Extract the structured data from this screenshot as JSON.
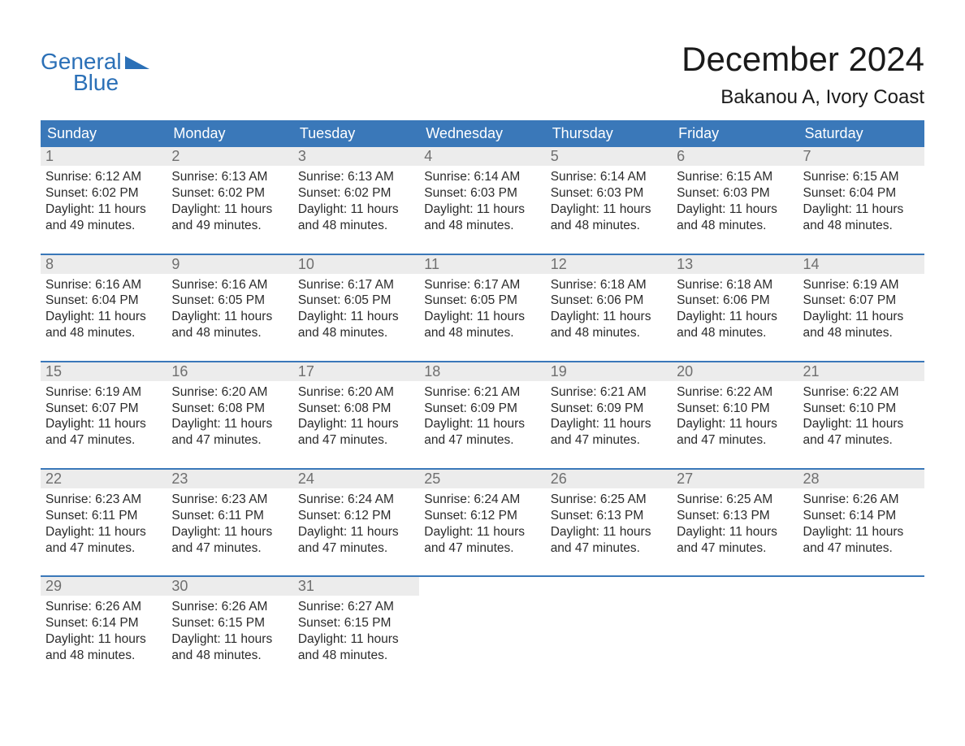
{
  "logo": {
    "word1": "General",
    "word2": "Blue"
  },
  "brand_color": "#2b70b7",
  "header_bg": "#3a78b9",
  "daynum_bg": "#ececec",
  "daynum_color": "#6f6f6f",
  "title": "December 2024",
  "location": "Bakanou A, Ivory Coast",
  "weekdays": [
    "Sunday",
    "Monday",
    "Tuesday",
    "Wednesday",
    "Thursday",
    "Friday",
    "Saturday"
  ],
  "labels": {
    "sunrise": "Sunrise:",
    "sunset": "Sunset:",
    "daylight": "Daylight:"
  },
  "weeks": [
    [
      {
        "n": "1",
        "sunrise": "6:12 AM",
        "sunset": "6:02 PM",
        "daylight": "11 hours and 49 minutes."
      },
      {
        "n": "2",
        "sunrise": "6:13 AM",
        "sunset": "6:02 PM",
        "daylight": "11 hours and 49 minutes."
      },
      {
        "n": "3",
        "sunrise": "6:13 AM",
        "sunset": "6:02 PM",
        "daylight": "11 hours and 48 minutes."
      },
      {
        "n": "4",
        "sunrise": "6:14 AM",
        "sunset": "6:03 PM",
        "daylight": "11 hours and 48 minutes."
      },
      {
        "n": "5",
        "sunrise": "6:14 AM",
        "sunset": "6:03 PM",
        "daylight": "11 hours and 48 minutes."
      },
      {
        "n": "6",
        "sunrise": "6:15 AM",
        "sunset": "6:03 PM",
        "daylight": "11 hours and 48 minutes."
      },
      {
        "n": "7",
        "sunrise": "6:15 AM",
        "sunset": "6:04 PM",
        "daylight": "11 hours and 48 minutes."
      }
    ],
    [
      {
        "n": "8",
        "sunrise": "6:16 AM",
        "sunset": "6:04 PM",
        "daylight": "11 hours and 48 minutes."
      },
      {
        "n": "9",
        "sunrise": "6:16 AM",
        "sunset": "6:05 PM",
        "daylight": "11 hours and 48 minutes."
      },
      {
        "n": "10",
        "sunrise": "6:17 AM",
        "sunset": "6:05 PM",
        "daylight": "11 hours and 48 minutes."
      },
      {
        "n": "11",
        "sunrise": "6:17 AM",
        "sunset": "6:05 PM",
        "daylight": "11 hours and 48 minutes."
      },
      {
        "n": "12",
        "sunrise": "6:18 AM",
        "sunset": "6:06 PM",
        "daylight": "11 hours and 48 minutes."
      },
      {
        "n": "13",
        "sunrise": "6:18 AM",
        "sunset": "6:06 PM",
        "daylight": "11 hours and 48 minutes."
      },
      {
        "n": "14",
        "sunrise": "6:19 AM",
        "sunset": "6:07 PM",
        "daylight": "11 hours and 48 minutes."
      }
    ],
    [
      {
        "n": "15",
        "sunrise": "6:19 AM",
        "sunset": "6:07 PM",
        "daylight": "11 hours and 47 minutes."
      },
      {
        "n": "16",
        "sunrise": "6:20 AM",
        "sunset": "6:08 PM",
        "daylight": "11 hours and 47 minutes."
      },
      {
        "n": "17",
        "sunrise": "6:20 AM",
        "sunset": "6:08 PM",
        "daylight": "11 hours and 47 minutes."
      },
      {
        "n": "18",
        "sunrise": "6:21 AM",
        "sunset": "6:09 PM",
        "daylight": "11 hours and 47 minutes."
      },
      {
        "n": "19",
        "sunrise": "6:21 AM",
        "sunset": "6:09 PM",
        "daylight": "11 hours and 47 minutes."
      },
      {
        "n": "20",
        "sunrise": "6:22 AM",
        "sunset": "6:10 PM",
        "daylight": "11 hours and 47 minutes."
      },
      {
        "n": "21",
        "sunrise": "6:22 AM",
        "sunset": "6:10 PM",
        "daylight": "11 hours and 47 minutes."
      }
    ],
    [
      {
        "n": "22",
        "sunrise": "6:23 AM",
        "sunset": "6:11 PM",
        "daylight": "11 hours and 47 minutes."
      },
      {
        "n": "23",
        "sunrise": "6:23 AM",
        "sunset": "6:11 PM",
        "daylight": "11 hours and 47 minutes."
      },
      {
        "n": "24",
        "sunrise": "6:24 AM",
        "sunset": "6:12 PM",
        "daylight": "11 hours and 47 minutes."
      },
      {
        "n": "25",
        "sunrise": "6:24 AM",
        "sunset": "6:12 PM",
        "daylight": "11 hours and 47 minutes."
      },
      {
        "n": "26",
        "sunrise": "6:25 AM",
        "sunset": "6:13 PM",
        "daylight": "11 hours and 47 minutes."
      },
      {
        "n": "27",
        "sunrise": "6:25 AM",
        "sunset": "6:13 PM",
        "daylight": "11 hours and 47 minutes."
      },
      {
        "n": "28",
        "sunrise": "6:26 AM",
        "sunset": "6:14 PM",
        "daylight": "11 hours and 47 minutes."
      }
    ],
    [
      {
        "n": "29",
        "sunrise": "6:26 AM",
        "sunset": "6:14 PM",
        "daylight": "11 hours and 48 minutes."
      },
      {
        "n": "30",
        "sunrise": "6:26 AM",
        "sunset": "6:15 PM",
        "daylight": "11 hours and 48 minutes."
      },
      {
        "n": "31",
        "sunrise": "6:27 AM",
        "sunset": "6:15 PM",
        "daylight": "11 hours and 48 minutes."
      },
      {
        "blank": true
      },
      {
        "blank": true
      },
      {
        "blank": true
      },
      {
        "blank": true
      }
    ]
  ]
}
